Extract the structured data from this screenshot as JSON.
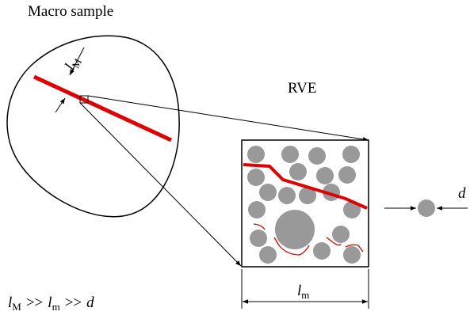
{
  "labels": {
    "macro_sample": "Macro sample",
    "rve": "RVE",
    "crack_width": {
      "symbol": "l",
      "subscript": "M"
    },
    "rve_size": {
      "symbol": "l",
      "subscript": "m"
    },
    "particle_size": "d",
    "relation": [
      {
        "symbol": "l",
        "subscript": "M"
      },
      ">>",
      {
        "symbol": "l",
        "subscript": "m"
      },
      ">>",
      "d"
    ]
  }
}
